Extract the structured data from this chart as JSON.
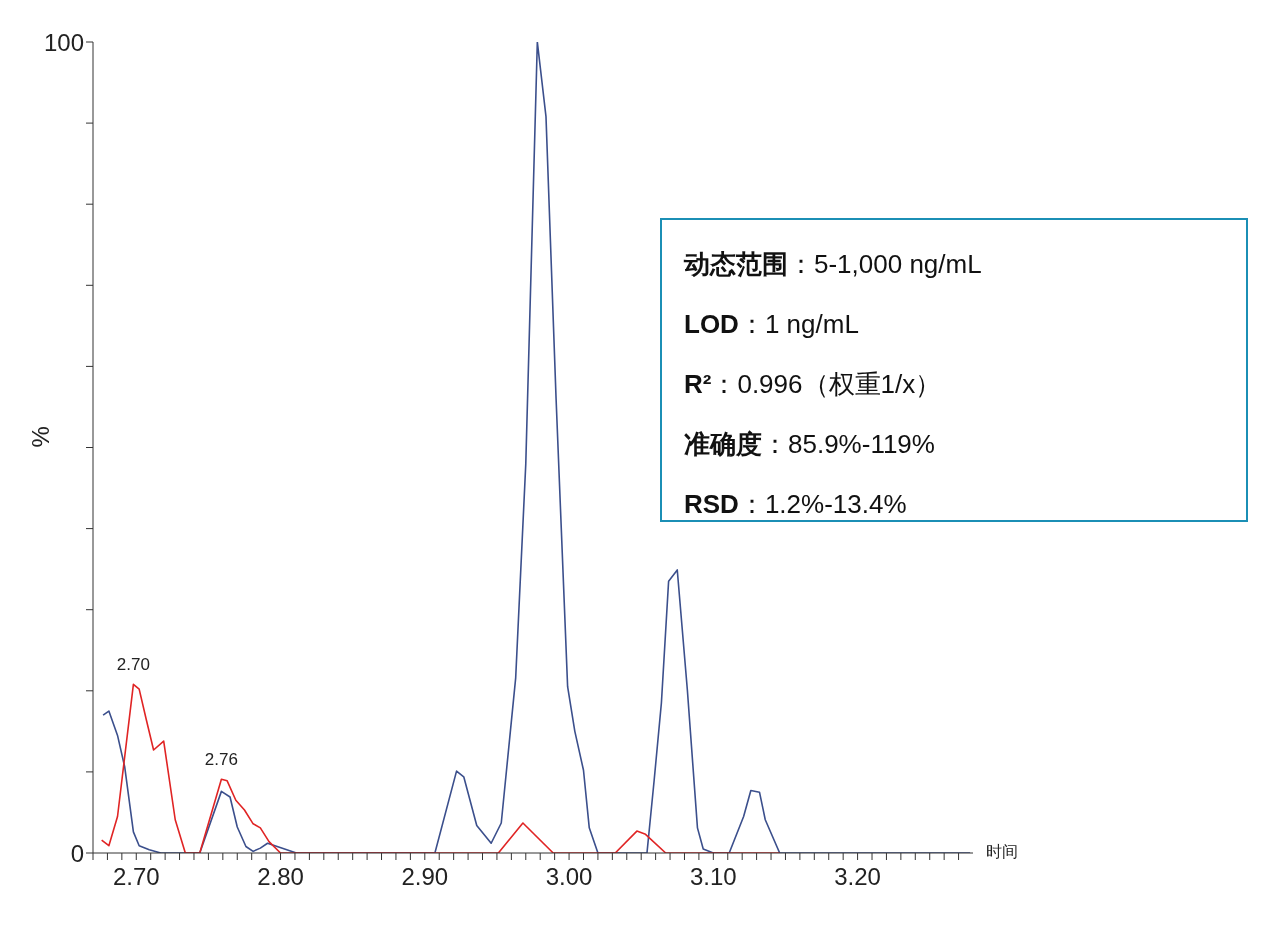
{
  "chart_data": {
    "type": "line",
    "xlabel": "时间",
    "ylabel": "%",
    "xlim": [
      2.67,
      3.28
    ],
    "ylim": [
      0,
      100
    ],
    "xticks": [
      {
        "value": 2.67,
        "label": null
      },
      {
        "value": 2.68,
        "label": null
      },
      {
        "value": 2.69,
        "label": null
      },
      {
        "value": 2.7,
        "label": "2.70"
      },
      {
        "value": 2.71,
        "label": null
      },
      {
        "value": 2.72,
        "label": null
      },
      {
        "value": 2.73,
        "label": null
      },
      {
        "value": 2.74,
        "label": null
      },
      {
        "value": 2.75,
        "label": null
      },
      {
        "value": 2.76,
        "label": null
      },
      {
        "value": 2.77,
        "label": null
      },
      {
        "value": 2.78,
        "label": null
      },
      {
        "value": 2.79,
        "label": null
      },
      {
        "value": 2.8,
        "label": "2.80"
      },
      {
        "value": 2.81,
        "label": null
      },
      {
        "value": 2.82,
        "label": null
      },
      {
        "value": 2.83,
        "label": null
      },
      {
        "value": 2.84,
        "label": null
      },
      {
        "value": 2.85,
        "label": null
      },
      {
        "value": 2.86,
        "label": null
      },
      {
        "value": 2.87,
        "label": null
      },
      {
        "value": 2.88,
        "label": null
      },
      {
        "value": 2.89,
        "label": null
      },
      {
        "value": 2.9,
        "label": "2.90"
      },
      {
        "value": 2.91,
        "label": null
      },
      {
        "value": 2.92,
        "label": null
      },
      {
        "value": 2.93,
        "label": null
      },
      {
        "value": 2.94,
        "label": null
      },
      {
        "value": 2.95,
        "label": null
      },
      {
        "value": 2.96,
        "label": null
      },
      {
        "value": 2.97,
        "label": null
      },
      {
        "value": 2.98,
        "label": null
      },
      {
        "value": 2.99,
        "label": null
      },
      {
        "value": 3.0,
        "label": "3.00"
      },
      {
        "value": 3.01,
        "label": null
      },
      {
        "value": 3.02,
        "label": null
      },
      {
        "value": 3.03,
        "label": null
      },
      {
        "value": 3.04,
        "label": null
      },
      {
        "value": 3.05,
        "label": null
      },
      {
        "value": 3.06,
        "label": null
      },
      {
        "value": 3.07,
        "label": null
      },
      {
        "value": 3.08,
        "label": null
      },
      {
        "value": 3.09,
        "label": null
      },
      {
        "value": 3.1,
        "label": "3.10"
      },
      {
        "value": 3.11,
        "label": null
      },
      {
        "value": 3.12,
        "label": null
      },
      {
        "value": 3.13,
        "label": null
      },
      {
        "value": 3.14,
        "label": null
      },
      {
        "value": 3.15,
        "label": null
      },
      {
        "value": 3.16,
        "label": null
      },
      {
        "value": 3.17,
        "label": null
      },
      {
        "value": 3.18,
        "label": null
      },
      {
        "value": 3.19,
        "label": null
      },
      {
        "value": 3.2,
        "label": "3.20"
      },
      {
        "value": 3.21,
        "label": null
      },
      {
        "value": 3.22,
        "label": null
      },
      {
        "value": 3.23,
        "label": null
      },
      {
        "value": 3.24,
        "label": null
      },
      {
        "value": 3.25,
        "label": null
      },
      {
        "value": 3.26,
        "label": null
      },
      {
        "value": 3.27,
        "label": null
      }
    ],
    "yticks": [
      0,
      {
        "value": 10,
        "label": null
      },
      {
        "value": 20,
        "label": null
      },
      {
        "value": 30,
        "label": null
      },
      {
        "value": 40,
        "label": null
      },
      {
        "value": 50,
        "label": null
      },
      {
        "value": 60,
        "label": null
      },
      {
        "value": 70,
        "label": null
      },
      {
        "value": 80,
        "label": null
      },
      {
        "value": 90,
        "label": null
      },
      100
    ],
    "series": [
      {
        "color": "#3b4f8c",
        "x": [
          2.677,
          2.681,
          2.687,
          2.692,
          2.698,
          2.702,
          2.709,
          2.717,
          2.727,
          2.744,
          2.759,
          2.765,
          2.77,
          2.776,
          2.781,
          2.786,
          2.791,
          2.811,
          2.907,
          2.922,
          2.927,
          2.936,
          2.946,
          2.953,
          2.963,
          2.97,
          2.978,
          2.984,
          2.991,
          2.999,
          3.004,
          3.01,
          3.014,
          3.02,
          3.054,
          3.059,
          3.064,
          3.069,
          3.075,
          3.082,
          3.089,
          3.093,
          3.1,
          3.111,
          3.121,
          3.126,
          3.132,
          3.136,
          3.146,
          3.278
        ],
        "values": [
          17.0,
          17.5,
          14.5,
          10.6,
          2.6,
          0.9,
          0.4,
          0,
          0,
          0,
          7.6,
          6.9,
          3.2,
          0.8,
          0.2,
          0.6,
          1.2,
          0,
          0,
          10.1,
          9.4,
          3.4,
          1.2,
          3.7,
          21.6,
          48,
          100,
          90.8,
          56,
          20.5,
          15,
          10.2,
          3.1,
          0,
          0,
          9.0,
          18.5,
          33.5,
          34.9,
          20.1,
          3.1,
          0.5,
          0,
          0,
          4.5,
          7.7,
          7.5,
          4.1,
          0,
          0
        ]
      },
      {
        "color": "#e02424",
        "x": [
          2.676,
          2.681,
          2.687,
          2.698,
          2.702,
          2.707,
          2.712,
          2.719,
          2.727,
          2.734,
          2.744,
          2.759,
          2.763,
          2.769,
          2.775,
          2.781,
          2.786,
          2.792,
          2.8,
          2.951,
          2.968,
          2.989,
          3.032,
          3.047,
          3.053,
          3.067,
          3.146
        ],
        "values": [
          1.6,
          0.9,
          4.5,
          20.8,
          20.2,
          16.4,
          12.7,
          13.8,
          4.1,
          0,
          0,
          9.1,
          8.9,
          6.5,
          5.3,
          3.6,
          3.1,
          1.4,
          0,
          0,
          3.7,
          0,
          0,
          2.7,
          2.3,
          0,
          0
        ]
      }
    ],
    "annotations": [
      {
        "text": "2.70",
        "x": 2.698,
        "y": 20.8
      },
      {
        "text": "2.76",
        "x": 2.759,
        "y": 9.1
      },
      "动态范围：5-1,000 ng/mL",
      "LOD：1 ng/mL",
      "R²：0.996（权重1/x）",
      "准确度：85.9%-119%",
      "RSD：1.2%-13.4%"
    ],
    "grid": false,
    "legend": false,
    "marker": "none",
    "line_style": "solid"
  }
}
